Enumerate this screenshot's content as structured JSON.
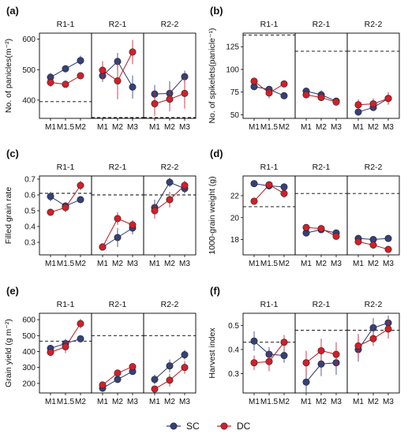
{
  "legend": {
    "items": [
      {
        "name": "SC",
        "color": "#34417a"
      },
      {
        "name": "DC",
        "color": "#d0202a"
      }
    ]
  },
  "colors": {
    "SC": "#34417a",
    "DC": "#d0202a",
    "SC_line": "#2a3570",
    "DC_line": "#b81820",
    "errorbar": "#555555",
    "frame": "#000000",
    "reference": "#000000"
  },
  "chart_data": [
    {
      "type": "line",
      "panel_label": "(a)",
      "ylabel": "No. of panicles(m⁻²)",
      "ylim": [
        340,
        620
      ],
      "yticks": [
        400,
        500,
        600
      ],
      "facets": [
        {
          "name": "R1-1",
          "x": [
            "M1",
            "M1.5",
            "M2"
          ],
          "reference_line": 395,
          "series": [
            {
              "name": "SC",
              "values": [
                475,
                503,
                530
              ],
              "err": [
                14,
                8,
                16
              ]
            },
            {
              "name": "DC",
              "values": [
                458,
                452,
                480
              ],
              "err": [
                14,
                10,
                10
              ]
            }
          ]
        },
        {
          "name": "R2-1",
          "x": [
            "M1",
            "M2",
            "M3"
          ],
          "reference_line": 325,
          "series": [
            {
              "name": "SC",
              "values": [
                480,
                527,
                443
              ],
              "err": [
                20,
                28,
                38
              ]
            },
            {
              "name": "DC",
              "values": [
                498,
                463,
                558
              ],
              "err": [
                30,
                60,
                40
              ]
            }
          ]
        },
        {
          "name": "R2-2",
          "x": [
            "M1",
            "M2",
            "M3"
          ],
          "reference_line": 325,
          "series": [
            {
              "name": "SC",
              "values": [
                420,
                422,
                477
              ],
              "err": [
                30,
                40,
                20
              ]
            },
            {
              "name": "DC",
              "values": [
                388,
                403,
                422
              ],
              "err": [
                40,
                40,
                50
              ]
            }
          ]
        }
      ]
    },
    {
      "type": "line",
      "panel_label": "(b)",
      "ylabel": "No. of spikelets(panicle⁻¹)",
      "ylim": [
        46,
        140
      ],
      "yticks": [
        50,
        75,
        100,
        125
      ],
      "facets": [
        {
          "name": "R1-1",
          "x": [
            "M1",
            "M1.5",
            "M2"
          ],
          "reference_line": 138,
          "series": [
            {
              "name": "SC",
              "values": [
                81,
                78,
                71
              ],
              "err": [
                3,
                4,
                3
              ]
            },
            {
              "name": "DC",
              "values": [
                87,
                74,
                84
              ],
              "err": [
                3,
                6,
                3
              ]
            }
          ]
        },
        {
          "name": "R2-1",
          "x": [
            "M1",
            "M2",
            "M3"
          ],
          "reference_line": 120,
          "series": [
            {
              "name": "SC",
              "values": [
                76,
                72,
                65
              ],
              "err": [
                3,
                5,
                3
              ]
            },
            {
              "name": "DC",
              "values": [
                72,
                69,
                64
              ],
              "err": [
                2,
                3,
                2
              ]
            }
          ]
        },
        {
          "name": "R2-2",
          "x": [
            "M1",
            "M2",
            "M3"
          ],
          "reference_line": 120,
          "series": [
            {
              "name": "SC",
              "values": [
                53,
                58,
                68
              ],
              "err": [
                3,
                3,
                6
              ]
            },
            {
              "name": "DC",
              "values": [
                61,
                62,
                68
              ],
              "err": [
                6,
                6,
                7
              ]
            }
          ]
        }
      ]
    },
    {
      "type": "line",
      "panel_label": "(c)",
      "ylabel": "Filled grain rate",
      "ylim": [
        0.22,
        0.72
      ],
      "yticks": [
        0.3,
        0.4,
        0.5,
        0.6,
        0.7
      ],
      "facets": [
        {
          "name": "R1-1",
          "x": [
            "M1",
            "M1.5",
            "M2"
          ],
          "reference_line": 0.61,
          "series": [
            {
              "name": "SC",
              "values": [
                0.59,
                0.53,
                0.57
              ],
              "err": [
                0.03,
                0.02,
                0.02
              ]
            },
            {
              "name": "DC",
              "values": [
                0.49,
                0.52,
                0.66
              ],
              "err": [
                0.02,
                0.03,
                0.03
              ]
            }
          ]
        },
        {
          "name": "R2-1",
          "x": [
            "M1",
            "M2",
            "M3"
          ],
          "reference_line": 0.6,
          "series": [
            {
              "name": "SC",
              "values": [
                0.27,
                0.33,
                0.39
              ],
              "err": [
                0.02,
                0.06,
                0.04
              ]
            },
            {
              "name": "DC",
              "values": [
                0.27,
                0.45,
                0.41
              ],
              "err": [
                0.02,
                0.04,
                0.03
              ]
            }
          ]
        },
        {
          "name": "R2-2",
          "x": [
            "M1",
            "M2",
            "M3"
          ],
          "reference_line": 0.6,
          "series": [
            {
              "name": "SC",
              "values": [
                0.52,
                0.68,
                0.64
              ],
              "err": [
                0.05,
                0.03,
                0.03
              ]
            },
            {
              "name": "DC",
              "values": [
                0.5,
                0.57,
                0.66
              ],
              "err": [
                0.05,
                0.05,
                0.03
              ]
            }
          ]
        }
      ]
    },
    {
      "type": "line",
      "panel_label": "(d)",
      "ylabel": "1000-grain weight (g)",
      "ylim": [
        16.6,
        23.8
      ],
      "yticks": [
        18,
        20,
        22
      ],
      "facets": [
        {
          "name": "R1-1",
          "x": [
            "M1",
            "M1.5",
            "M2"
          ],
          "reference_line": 21.0,
          "series": [
            {
              "name": "SC",
              "values": [
                23.1,
                22.9,
                22.8
              ],
              "err": [
                0.3,
                0.3,
                0.3
              ]
            },
            {
              "name": "DC",
              "values": [
                21.5,
                23.0,
                22.2
              ],
              "err": [
                0.3,
                0.3,
                0.4
              ]
            }
          ]
        },
        {
          "name": "R2-1",
          "x": [
            "M1",
            "M2",
            "M3"
          ],
          "reference_line": 22.2,
          "series": [
            {
              "name": "SC",
              "values": [
                18.6,
                18.9,
                18.6
              ],
              "err": [
                0.2,
                0.2,
                0.2
              ]
            },
            {
              "name": "DC",
              "values": [
                19.1,
                19.0,
                18.3
              ],
              "err": [
                0.2,
                0.2,
                0.2
              ]
            }
          ]
        },
        {
          "name": "R2-2",
          "x": [
            "M1",
            "M2",
            "M3"
          ],
          "reference_line": 22.2,
          "series": [
            {
              "name": "SC",
              "values": [
                18.1,
                18.0,
                18.1
              ],
              "err": [
                0.2,
                0.2,
                0.2
              ]
            },
            {
              "name": "DC",
              "values": [
                17.8,
                17.5,
                17.1
              ],
              "err": [
                0.2,
                0.2,
                0.2
              ]
            }
          ]
        }
      ]
    },
    {
      "type": "line",
      "panel_label": "(e)",
      "ylabel": "Grain yield (g m⁻²)",
      "ylim": [
        140,
        640
      ],
      "yticks": [
        200,
        300,
        400,
        500,
        600
      ],
      "facets": [
        {
          "name": "R1-1",
          "x": [
            "M1",
            "M1.5",
            "M2"
          ],
          "reference_line": 465,
          "series": [
            {
              "name": "SC",
              "values": [
                420,
                450,
                480
              ],
              "err": [
                20,
                30,
                15
              ]
            },
            {
              "name": "DC",
              "values": [
                395,
                430,
                575
              ],
              "err": [
                15,
                40,
                30
              ]
            }
          ]
        },
        {
          "name": "R2-1",
          "x": [
            "M1",
            "M2",
            "M3"
          ],
          "reference_line": 500,
          "series": [
            {
              "name": "SC",
              "values": [
                170,
                225,
                275
              ],
              "err": [
                15,
                20,
                20
              ]
            },
            {
              "name": "DC",
              "values": [
                190,
                265,
                305
              ],
              "err": [
                15,
                20,
                20
              ]
            }
          ]
        },
        {
          "name": "R2-2",
          "x": [
            "M1",
            "M2",
            "M3"
          ],
          "reference_line": 500,
          "series": [
            {
              "name": "SC",
              "values": [
                225,
                310,
                380
              ],
              "err": [
                30,
                40,
                30
              ]
            },
            {
              "name": "DC",
              "values": [
                165,
                220,
                300
              ],
              "err": [
                15,
                40,
                40
              ]
            }
          ]
        }
      ]
    },
    {
      "type": "line",
      "panel_label": "(f)",
      "ylabel": "Harvest index",
      "ylim": [
        0.22,
        0.55
      ],
      "yticks": [
        0.3,
        0.4,
        0.5
      ],
      "facets": [
        {
          "name": "R1-1",
          "x": [
            "M1",
            "M1.5",
            "M2"
          ],
          "reference_line": 0.43,
          "series": [
            {
              "name": "SC",
              "values": [
                0.435,
                0.38,
                0.375
              ],
              "err": [
                0.04,
                0.03,
                0.03
              ]
            },
            {
              "name": "DC",
              "values": [
                0.345,
                0.35,
                0.43
              ],
              "err": [
                0.03,
                0.04,
                0.03
              ]
            }
          ]
        },
        {
          "name": "R2-1",
          "x": [
            "M1",
            "M2",
            "M3"
          ],
          "reference_line": 0.48,
          "series": [
            {
              "name": "SC",
              "values": [
                0.265,
                0.34,
                0.345
              ],
              "err": [
                0.05,
                0.05,
                0.05
              ]
            },
            {
              "name": "DC",
              "values": [
                0.345,
                0.395,
                0.38
              ],
              "err": [
                0.05,
                0.05,
                0.05
              ]
            }
          ]
        },
        {
          "name": "R2-2",
          "x": [
            "M1",
            "M2",
            "M3"
          ],
          "reference_line": 0.48,
          "series": [
            {
              "name": "SC",
              "values": [
                0.4,
                0.49,
                0.51
              ],
              "err": [
                0.05,
                0.04,
                0.03
              ]
            },
            {
              "name": "DC",
              "values": [
                0.415,
                0.445,
                0.485
              ],
              "err": [
                0.05,
                0.03,
                0.04
              ]
            }
          ]
        }
      ]
    }
  ]
}
